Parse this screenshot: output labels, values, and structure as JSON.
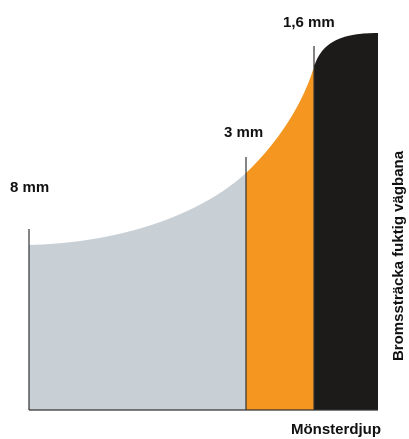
{
  "chart_data": {
    "type": "area",
    "title": "",
    "xlabel": "Mönsterdjup",
    "ylabel": "Bromssträcka fuktig vägbana",
    "grid": false,
    "legend": "none",
    "markers": [
      {
        "label": "8 mm"
      },
      {
        "label": "3 mm"
      },
      {
        "label": "1,6 mm"
      }
    ],
    "bands": [
      {
        "from": "8 mm",
        "to": "3 mm",
        "color": "#c8d0d6"
      },
      {
        "from": "3 mm",
        "to": "1,6 mm",
        "color": "#f49620"
      },
      {
        "from": "1,6 mm",
        "to": "",
        "color": "#1d1a1a"
      }
    ]
  }
}
